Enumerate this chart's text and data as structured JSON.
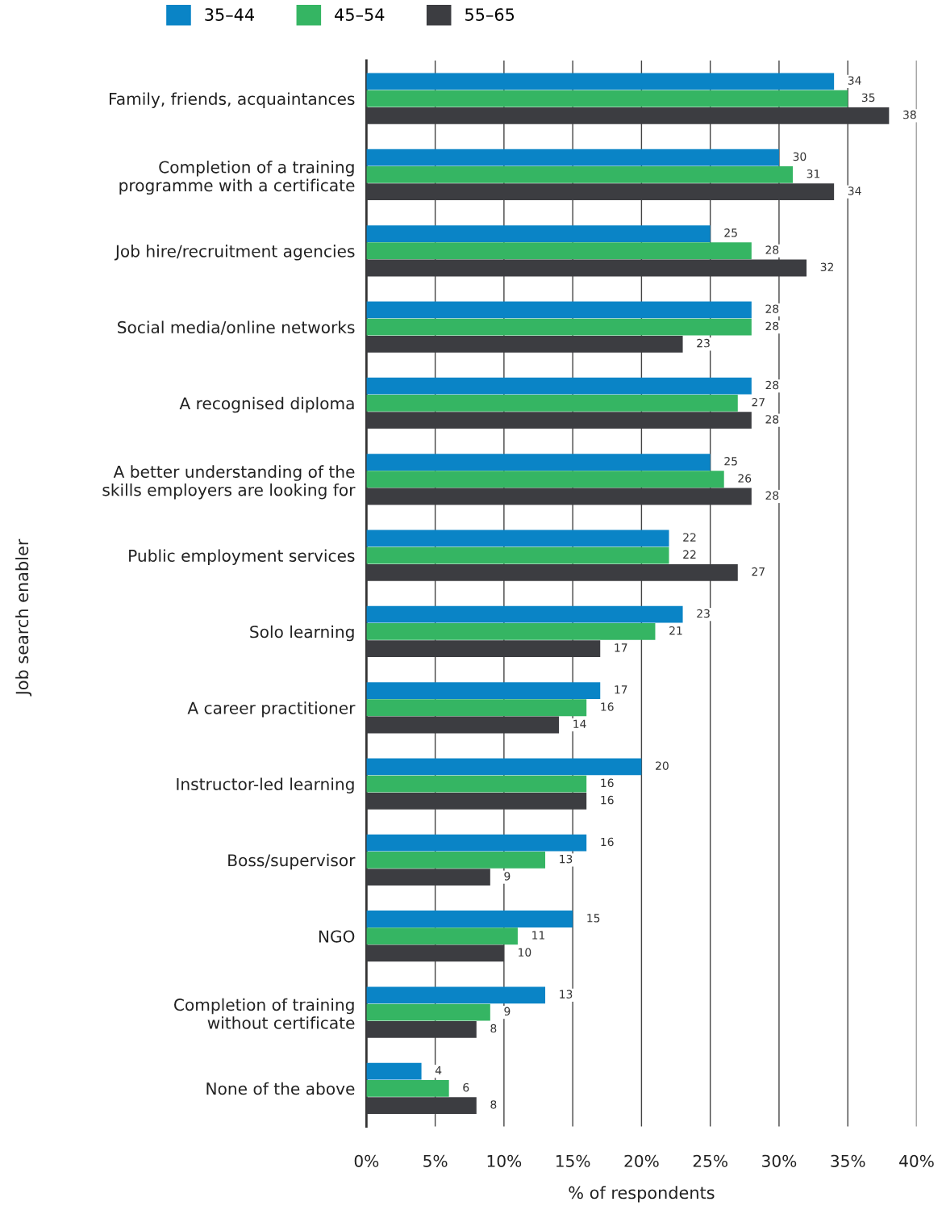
{
  "chart_data": {
    "type": "bar",
    "orientation": "horizontal",
    "xlabel": "% of respondents",
    "ylabel": "Job search enabler",
    "categories": [
      "Family, friends, acquaintances",
      "Completion of a training\nprogramme with a certificate",
      "Job hire/recruitment agencies",
      "Social media/online networks",
      "A recognised diploma",
      "A better understanding of the\nskills employers are looking for",
      "Public employment services",
      "Solo learning",
      "A career practitioner",
      "Instructor-led learning",
      "Boss/supervisor",
      "NGO",
      "Completion of training\nwithout certificate",
      "None of the above"
    ],
    "series": [
      {
        "name": "35–44",
        "color": "#0a84c6",
        "values": [
          34,
          30,
          25,
          28,
          28,
          25,
          22,
          23,
          17,
          20,
          16,
          15,
          13,
          4
        ]
      },
      {
        "name": "45–54",
        "color": "#35b563",
        "values": [
          35,
          31,
          28,
          28,
          27,
          26,
          22,
          21,
          16,
          16,
          13,
          11,
          9,
          6
        ]
      },
      {
        "name": "55–65",
        "color": "#3c3d41",
        "values": [
          38,
          34,
          32,
          23,
          28,
          28,
          27,
          17,
          14,
          16,
          9,
          10,
          8,
          8
        ]
      }
    ],
    "xlim": [
      0,
      40
    ],
    "xticks": [
      {
        "value": 0,
        "label": "0%"
      },
      {
        "value": 5,
        "label": "5%"
      },
      {
        "value": 10,
        "label": "10%"
      },
      {
        "value": 15,
        "label": "15%"
      },
      {
        "value": 20,
        "label": "20%"
      },
      {
        "value": 25,
        "label": "25%"
      },
      {
        "value": 30,
        "label": "30%"
      },
      {
        "value": 35,
        "label": "35%"
      },
      {
        "value": 40,
        "label": "40%"
      }
    ],
    "grid": "x",
    "legend": "top left",
    "data_labels": true
  }
}
